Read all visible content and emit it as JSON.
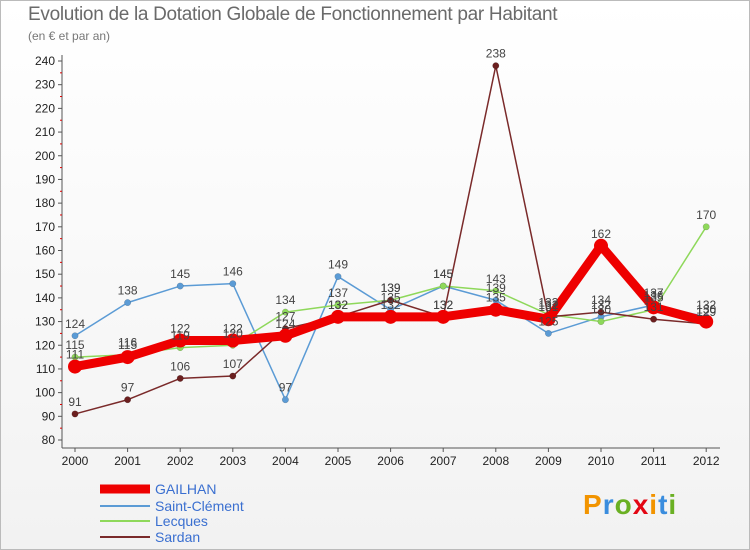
{
  "header": {
    "title": "Evolution de la Dotation Globale de Fonctionnement par Habitant",
    "subtitle": "(en € et par an)"
  },
  "logo": {
    "text": "Proxiti",
    "colors": [
      "#f29400",
      "#3a8dde",
      "#6ab023",
      "#e30613",
      "#f29400",
      "#3a8dde",
      "#6ab023"
    ]
  },
  "chart_data": {
    "type": "line",
    "title": "Evolution de la Dotation Globale de Fonctionnement par Habitant",
    "ylabel": "(en € et par an)",
    "xlabel": "",
    "ylim": [
      80,
      240
    ],
    "yticks": [
      80,
      90,
      100,
      110,
      120,
      130,
      140,
      150,
      160,
      170,
      180,
      190,
      200,
      210,
      220,
      230,
      240
    ],
    "categories": [
      "2000",
      "2001",
      "2002",
      "2003",
      "2004",
      "2005",
      "2006",
      "2007",
      "2008",
      "2009",
      "2010",
      "2011",
      "2012"
    ],
    "grid": false,
    "legend_position": "bottom-left",
    "series": [
      {
        "name": "GAILHAN",
        "color": "#ee0000",
        "width": 9,
        "values": [
          111,
          115,
          122,
          122,
          124,
          132,
          132,
          132,
          135,
          131,
          162,
          136,
          130
        ]
      },
      {
        "name": "Saint-Clément",
        "color": "#5b9bd5",
        "width": 1.5,
        "values": [
          124,
          138,
          145,
          146,
          97,
          149,
          135,
          145,
          139,
          125,
          132,
          137,
          132
        ]
      },
      {
        "name": "Lecques",
        "color": "#8ed85a",
        "width": 1.5,
        "values": [
          115,
          116,
          119,
          120,
          134,
          137,
          139,
          145,
          143,
          133,
          130,
          135,
          170
        ]
      },
      {
        "name": "Sardan",
        "color": "#7a2a2a",
        "width": 1.5,
        "values": [
          91,
          97,
          106,
          107,
          127,
          132,
          139,
          132,
          238,
          132,
          134,
          131,
          129
        ]
      }
    ]
  }
}
